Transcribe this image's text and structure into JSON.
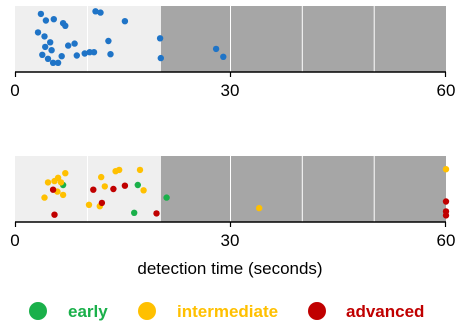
{
  "colors": {
    "early_region": "#efefef",
    "late_region": "#a6a6a6",
    "gridline": "#ffffff",
    "axis": "#000000",
    "blue": "#1f74c7",
    "early": "#1ab04a",
    "intermediate": "#ffc000",
    "advanced": "#c00000"
  },
  "chart_data": [
    {
      "type": "scatter",
      "title": "",
      "xlabel": "",
      "ylabel": "",
      "xlim": [
        0,
        60
      ],
      "xticks": [
        0,
        30,
        60
      ],
      "xtick_labels": [
        "0",
        "30",
        "60"
      ],
      "grid": "vertical",
      "shaded_from_x": 20,
      "series": [
        {
          "color": "blue",
          "points": [
            {
              "x": 3.6,
              "y": 0.88
            },
            {
              "x": 4.3,
              "y": 0.78
            },
            {
              "x": 5.4,
              "y": 0.8
            },
            {
              "x": 3.2,
              "y": 0.6
            },
            {
              "x": 4.1,
              "y": 0.54
            },
            {
              "x": 6.7,
              "y": 0.74
            },
            {
              "x": 7.0,
              "y": 0.7
            },
            {
              "x": 4.9,
              "y": 0.45
            },
            {
              "x": 4.2,
              "y": 0.38
            },
            {
              "x": 5.1,
              "y": 0.33
            },
            {
              "x": 3.8,
              "y": 0.26
            },
            {
              "x": 4.6,
              "y": 0.2
            },
            {
              "x": 5.3,
              "y": 0.14
            },
            {
              "x": 6.0,
              "y": 0.14
            },
            {
              "x": 6.5,
              "y": 0.24
            },
            {
              "x": 7.4,
              "y": 0.4
            },
            {
              "x": 8.3,
              "y": 0.43
            },
            {
              "x": 8.6,
              "y": 0.25
            },
            {
              "x": 9.7,
              "y": 0.28
            },
            {
              "x": 10.4,
              "y": 0.3
            },
            {
              "x": 11.0,
              "y": 0.3
            },
            {
              "x": 11.2,
              "y": 0.92
            },
            {
              "x": 11.9,
              "y": 0.9
            },
            {
              "x": 13.0,
              "y": 0.47
            },
            {
              "x": 13.3,
              "y": 0.27
            },
            {
              "x": 15.3,
              "y": 0.77
            },
            {
              "x": 20.2,
              "y": 0.51
            },
            {
              "x": 20.3,
              "y": 0.21
            },
            {
              "x": 28.0,
              "y": 0.35
            },
            {
              "x": 29.0,
              "y": 0.23
            }
          ]
        }
      ]
    },
    {
      "type": "scatter",
      "title": "",
      "xlabel": "detection time (seconds)",
      "ylabel": "",
      "xlim": [
        0,
        60
      ],
      "xticks": [
        0,
        30,
        60
      ],
      "xtick_labels": [
        "0",
        "30",
        "60"
      ],
      "grid": "vertical",
      "shaded_from_x": 20,
      "series": [
        {
          "name": "early",
          "color": "early",
          "points": [
            {
              "x": 6.7,
              "y": 0.56
            },
            {
              "x": 17.1,
              "y": 0.56
            },
            {
              "x": 16.6,
              "y": 0.14
            },
            {
              "x": 21.1,
              "y": 0.37
            }
          ]
        },
        {
          "name": "intermediate",
          "color": "intermediate",
          "points": [
            {
              "x": 7.0,
              "y": 0.74
            },
            {
              "x": 6.0,
              "y": 0.67
            },
            {
              "x": 5.5,
              "y": 0.62
            },
            {
              "x": 6.4,
              "y": 0.6
            },
            {
              "x": 4.6,
              "y": 0.6
            },
            {
              "x": 5.9,
              "y": 0.46
            },
            {
              "x": 6.7,
              "y": 0.41
            },
            {
              "x": 4.1,
              "y": 0.37
            },
            {
              "x": 12.0,
              "y": 0.68
            },
            {
              "x": 14.0,
              "y": 0.77
            },
            {
              "x": 14.5,
              "y": 0.79
            },
            {
              "x": 17.4,
              "y": 0.79
            },
            {
              "x": 12.5,
              "y": 0.54
            },
            {
              "x": 17.9,
              "y": 0.48
            },
            {
              "x": 10.3,
              "y": 0.26
            },
            {
              "x": 11.8,
              "y": 0.24
            },
            {
              "x": 34.0,
              "y": 0.21
            },
            {
              "x": 60.0,
              "y": 0.8
            }
          ]
        },
        {
          "name": "advanced",
          "color": "advanced",
          "points": [
            {
              "x": 5.3,
              "y": 0.49
            },
            {
              "x": 10.9,
              "y": 0.49
            },
            {
              "x": 13.7,
              "y": 0.5
            },
            {
              "x": 15.3,
              "y": 0.55
            },
            {
              "x": 12.1,
              "y": 0.29
            },
            {
              "x": 5.5,
              "y": 0.11
            },
            {
              "x": 19.7,
              "y": 0.13
            },
            {
              "x": 60.0,
              "y": 0.31
            },
            {
              "x": 60.0,
              "y": 0.16
            },
            {
              "x": 60.0,
              "y": 0.1
            }
          ]
        }
      ]
    }
  ],
  "legend": {
    "items": [
      {
        "label": "early",
        "color": "early"
      },
      {
        "label": "intermediate",
        "color": "intermediate"
      },
      {
        "label": "advanced",
        "color": "advanced"
      }
    ]
  }
}
